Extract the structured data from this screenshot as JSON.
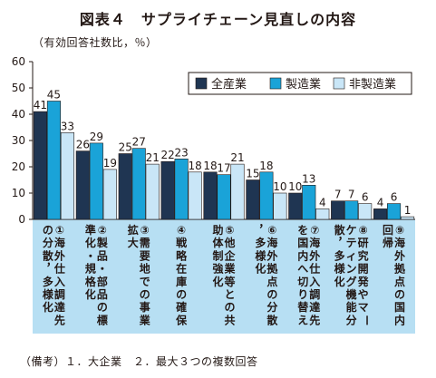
{
  "title": "図表４　サプライチェーン見直しの内容",
  "unit_label": "（有効回答社数比，％）",
  "note": "（備考）１．大企業　２．最大３つの複数回答",
  "colors": {
    "series": [
      "#1f3552",
      "#1aa3d8",
      "#c9e6f7"
    ],
    "category_band": "#b7dff3",
    "grid": "#231815"
  },
  "chart_data": {
    "type": "bar",
    "ylim": [
      0,
      60
    ],
    "yticks": [
      0,
      10,
      20,
      30,
      40,
      50,
      60
    ],
    "grid": false,
    "legend_position": "top-right",
    "categories": [
      "①海外仕入調達先の分散，多様化",
      "②製品・部品の標準化・規格化",
      "③需要地での事業拡大",
      "④戦略在庫の確保",
      "⑤他企業等との共助体制強化",
      "⑥海外拠点の分散，多様化",
      "⑦海外仕入調達先を国内へ切り替え",
      "⑧研究開発やマーケティング機能分散，多様化",
      "⑨海外拠点の国内回帰"
    ],
    "series": [
      {
        "name": "全産業",
        "values": [
          41,
          26,
          25,
          22,
          18,
          15,
          10,
          7,
          4
        ]
      },
      {
        "name": "製造業",
        "values": [
          45,
          29,
          27,
          23,
          17,
          18,
          13,
          7,
          6
        ]
      },
      {
        "name": "非製造業",
        "values": [
          33,
          19,
          21,
          18,
          21,
          10,
          4,
          6,
          1
        ]
      }
    ]
  }
}
